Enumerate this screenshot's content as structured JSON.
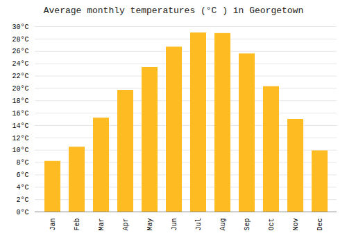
{
  "chart_data": {
    "type": "bar",
    "title": "Average monthly temperatures (°C ) in Georgetown",
    "categories": [
      "Jan",
      "Feb",
      "Mar",
      "Apr",
      "May",
      "Jun",
      "Jul",
      "Aug",
      "Sep",
      "Oct",
      "Nov",
      "Dec"
    ],
    "values": [
      8.2,
      10.5,
      15.2,
      19.7,
      23.4,
      26.7,
      29.0,
      28.9,
      25.6,
      20.3,
      15.0,
      9.9
    ],
    "color": "#FFBB22",
    "ylim": [
      0,
      30
    ],
    "yticks": [
      {
        "value": 0,
        "label": "0°C"
      },
      {
        "value": 2,
        "label": "2°C"
      },
      {
        "value": 4,
        "label": "4°C"
      },
      {
        "value": 6,
        "label": "6°C"
      },
      {
        "value": 8,
        "label": "8°C"
      },
      {
        "value": 10,
        "label": "10°C"
      },
      {
        "value": 12,
        "label": "12°C"
      },
      {
        "value": 14,
        "label": "14°C"
      },
      {
        "value": 16,
        "label": "16°C"
      },
      {
        "value": 18,
        "label": "18°C"
      },
      {
        "value": 20,
        "label": "20°C"
      },
      {
        "value": 22,
        "label": "22°C"
      },
      {
        "value": 24,
        "label": "24°C"
      },
      {
        "value": 26,
        "label": "26°C"
      },
      {
        "value": 28,
        "label": "28°C"
      },
      {
        "value": 30,
        "label": "30°C"
      }
    ],
    "grid": true
  }
}
